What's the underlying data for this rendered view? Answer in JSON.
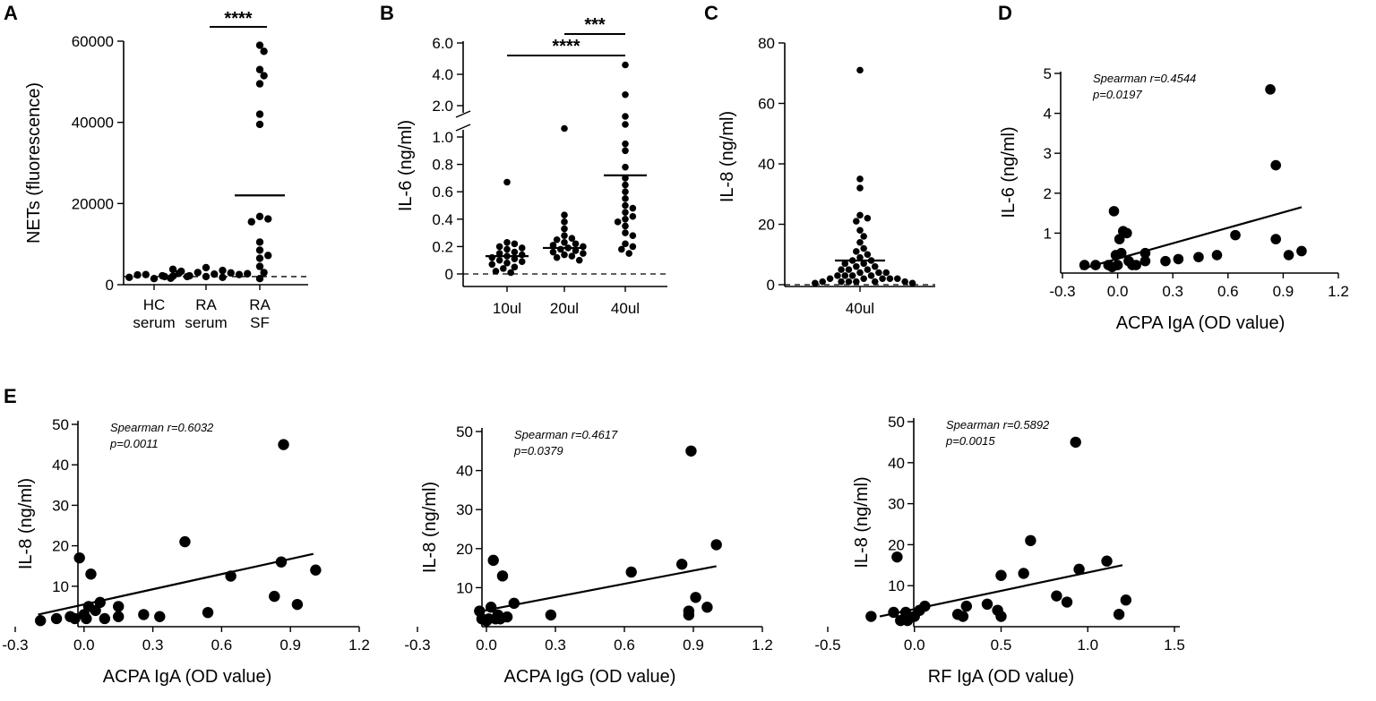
{
  "chart_data": [
    {
      "panel": "A",
      "type": "scatter",
      "ylabel": "NETs (fluorescence)",
      "ylim": [
        0,
        60000
      ],
      "yticks": [
        0,
        20000,
        40000,
        60000
      ],
      "categories": [
        [
          "HC",
          "serum"
        ],
        [
          "RA",
          "serum"
        ],
        [
          "RA",
          "SF"
        ]
      ],
      "groups": [
        [
          1500,
          2200,
          2500,
          1600,
          2400,
          2800,
          1800,
          2000
        ],
        [
          2000,
          2600,
          3000,
          3500,
          4200,
          2200,
          1800,
          2900,
          3300,
          2500,
          2100,
          3800,
          2700,
          2000
        ],
        [
          59000,
          57500,
          53000,
          51500,
          49500,
          42000,
          39500,
          16800,
          16200,
          15500,
          10500,
          8500,
          7200,
          6500,
          4500,
          3000,
          1500
        ]
      ],
      "means": [
        null,
        null,
        22000
      ],
      "reference_line": 2000,
      "significance": [
        {
          "from": 1,
          "to": 2,
          "label": "****"
        }
      ]
    },
    {
      "panel": "B",
      "type": "scatter",
      "ylabel": "IL-6  (ng/ml)",
      "axis_break": true,
      "yticks_lower": [
        "0",
        "0.2",
        "0.4",
        "0.6",
        "0.8",
        "1.0"
      ],
      "yticks_upper": [
        "2.0",
        "4.0",
        "6.0"
      ],
      "categories": [
        "10ul",
        "20ul",
        "40ul"
      ],
      "groups": [
        [
          0.67,
          0.23,
          0.22,
          0.2,
          0.19,
          0.18,
          0.16,
          0.15,
          0.14,
          0.13,
          0.12,
          0.11,
          0.1,
          0.09,
          0.08,
          0.07,
          0.05,
          0.04,
          0.02,
          0.01
        ],
        [
          1.15,
          0.43,
          0.38,
          0.33,
          0.28,
          0.26,
          0.25,
          0.23,
          0.22,
          0.21,
          0.2,
          0.19,
          0.18,
          0.17,
          0.16,
          0.15,
          0.14,
          0.13,
          0.12,
          0.1
        ],
        [
          4.6,
          2.7,
          1.6,
          1.3,
          0.95,
          0.9,
          0.78,
          0.7,
          0.65,
          0.6,
          0.55,
          0.5,
          0.48,
          0.45,
          0.42,
          0.4,
          0.38,
          0.35,
          0.3,
          0.28,
          0.22,
          0.2,
          0.18,
          0.15
        ]
      ],
      "means": [
        0.13,
        0.19,
        0.72
      ],
      "reference_line": 0,
      "significance": [
        {
          "from": 1,
          "to": 2,
          "label": "***"
        },
        {
          "from": 0,
          "to": 2,
          "label": "****"
        }
      ]
    },
    {
      "panel": "C",
      "type": "scatter",
      "ylabel": "IL-8  (ng/ml)",
      "ylim": [
        0,
        80
      ],
      "yticks": [
        0,
        20,
        40,
        60,
        80
      ],
      "categories": [
        "40ul"
      ],
      "groups": [
        [
          71,
          35,
          32,
          23,
          22,
          21,
          18,
          16,
          14,
          12,
          11,
          10,
          9,
          8,
          8,
          7,
          7,
          6,
          6,
          5,
          5,
          5,
          4,
          4,
          4,
          3,
          3,
          3,
          3,
          2,
          2,
          2,
          2,
          2,
          1,
          1,
          1,
          1,
          1,
          1,
          0.5,
          0.5
        ]
      ],
      "means": [
        8
      ],
      "reference_line": 0
    },
    {
      "panel": "D",
      "type": "scatter",
      "xlabel": "ACPA IgA (OD value)",
      "ylabel": "IL-6 (ng/ml)",
      "xlim": [
        -0.3,
        1.2
      ],
      "ylim": [
        0,
        5
      ],
      "xticks": [
        "-0.3",
        "0.0",
        "0.3",
        "0.6",
        "0.9",
        "1.2"
      ],
      "yticks": [
        1,
        2,
        3,
        4,
        5
      ],
      "annotation": [
        "Spearman r=0.4544",
        "p=0.0197"
      ],
      "points": [
        [
          -0.18,
          0.2
        ],
        [
          -0.12,
          0.2
        ],
        [
          -0.05,
          0.2
        ],
        [
          -0.03,
          0.15
        ],
        [
          -0.02,
          1.55
        ],
        [
          -0.01,
          0.45
        ],
        [
          0.0,
          0.2
        ],
        [
          0.01,
          0.85
        ],
        [
          0.02,
          0.5
        ],
        [
          0.03,
          1.05
        ],
        [
          0.05,
          1.0
        ],
        [
          0.06,
          0.3
        ],
        [
          0.08,
          0.2
        ],
        [
          0.1,
          0.2
        ],
        [
          0.15,
          0.5
        ],
        [
          0.15,
          0.3
        ],
        [
          0.26,
          0.3
        ],
        [
          0.33,
          0.35
        ],
        [
          0.44,
          0.4
        ],
        [
          0.54,
          0.45
        ],
        [
          0.64,
          0.95
        ],
        [
          0.83,
          4.6
        ],
        [
          0.86,
          2.7
        ],
        [
          0.86,
          0.85
        ],
        [
          0.93,
          0.45
        ],
        [
          1.0,
          0.55
        ]
      ],
      "fit": [
        [
          -0.2,
          0.1
        ],
        [
          1.0,
          1.65
        ]
      ]
    },
    {
      "panel": "E1",
      "type": "scatter",
      "xlabel": "ACPA IgA (OD value)",
      "ylabel": "IL-8 (ng/ml)",
      "xlim": [
        -0.3,
        1.2
      ],
      "ylim": [
        0,
        50
      ],
      "xticks": [
        "-0.3",
        "0.0",
        "0.3",
        "0.6",
        "0.9",
        "1.2"
      ],
      "yticks": [
        10,
        20,
        30,
        40,
        50
      ],
      "annotation": [
        "Spearman r=0.6032",
        "p=0.0011"
      ],
      "points": [
        [
          -0.19,
          1.5
        ],
        [
          -0.12,
          2
        ],
        [
          -0.06,
          2.5
        ],
        [
          -0.04,
          2
        ],
        [
          -0.02,
          17
        ],
        [
          0.0,
          3
        ],
        [
          0.01,
          2
        ],
        [
          0.02,
          5
        ],
        [
          0.03,
          13
        ],
        [
          0.05,
          4
        ],
        [
          0.07,
          6
        ],
        [
          0.09,
          2
        ],
        [
          0.15,
          2.5
        ],
        [
          0.15,
          5
        ],
        [
          0.26,
          3
        ],
        [
          0.33,
          2.5
        ],
        [
          0.44,
          21
        ],
        [
          0.54,
          3.5
        ],
        [
          0.64,
          12.5
        ],
        [
          0.83,
          7.5
        ],
        [
          0.86,
          16
        ],
        [
          0.87,
          45
        ],
        [
          0.93,
          5.5
        ],
        [
          1.01,
          14
        ]
      ],
      "fit": [
        [
          -0.2,
          3
        ],
        [
          1.0,
          18
        ]
      ]
    },
    {
      "panel": "E2",
      "type": "scatter",
      "xlabel": "ACPA IgG (OD value)",
      "ylabel": "IL-8 (ng/ml)",
      "xlim": [
        -0.3,
        1.2
      ],
      "ylim": [
        0,
        50
      ],
      "xticks": [
        "-0.3",
        "0.0",
        "0.3",
        "0.6",
        "0.9",
        "1.2"
      ],
      "yticks": [
        10,
        20,
        30,
        40,
        50
      ],
      "annotation": [
        "Spearman r=0.4617",
        "p=0.0379"
      ],
      "points": [
        [
          -0.03,
          4
        ],
        [
          -0.02,
          2
        ],
        [
          0.0,
          1.5
        ],
        [
          0.01,
          2
        ],
        [
          0.02,
          5
        ],
        [
          0.03,
          17
        ],
        [
          0.04,
          2
        ],
        [
          0.05,
          3
        ],
        [
          0.06,
          2
        ],
        [
          0.07,
          13
        ],
        [
          0.09,
          2.5
        ],
        [
          0.12,
          6
        ],
        [
          0.28,
          3
        ],
        [
          0.63,
          14
        ],
        [
          0.85,
          16
        ],
        [
          0.88,
          3
        ],
        [
          0.88,
          4
        ],
        [
          0.89,
          45
        ],
        [
          0.91,
          7.5
        ],
        [
          0.96,
          5
        ],
        [
          1.0,
          21
        ]
      ],
      "fit": [
        [
          -0.02,
          4
        ],
        [
          1.0,
          15.5
        ]
      ]
    },
    {
      "panel": "E3",
      "type": "scatter",
      "xlabel": "RF IgA (OD value)",
      "ylabel": "IL-8 (ng/ml)",
      "xlim": [
        -0.5,
        1.5
      ],
      "ylim": [
        0,
        50
      ],
      "xticks": [
        "-0.5",
        "0.0",
        "0.5",
        "1.0",
        "1.5"
      ],
      "yticks": [
        10,
        20,
        30,
        40,
        50
      ],
      "annotation": [
        "Spearman r=0.5892",
        "p=0.0015"
      ],
      "points": [
        [
          -0.25,
          2.5
        ],
        [
          -0.12,
          3.5
        ],
        [
          -0.1,
          17
        ],
        [
          -0.08,
          1.5
        ],
        [
          -0.05,
          3.5
        ],
        [
          -0.04,
          1.5
        ],
        [
          0.0,
          2.5
        ],
        [
          0.03,
          4
        ],
        [
          0.06,
          5
        ],
        [
          0.25,
          3
        ],
        [
          0.28,
          2.5
        ],
        [
          0.3,
          5
        ],
        [
          0.42,
          5.5
        ],
        [
          0.48,
          4
        ],
        [
          0.5,
          2.5
        ],
        [
          0.5,
          12.5
        ],
        [
          0.63,
          13
        ],
        [
          0.67,
          21
        ],
        [
          0.82,
          7.5
        ],
        [
          0.88,
          6
        ],
        [
          0.93,
          45
        ],
        [
          0.95,
          14
        ],
        [
          1.11,
          16
        ],
        [
          1.18,
          3
        ],
        [
          1.22,
          6.5
        ]
      ],
      "fit": [
        [
          -0.2,
          2.5
        ],
        [
          1.2,
          15
        ]
      ]
    }
  ]
}
